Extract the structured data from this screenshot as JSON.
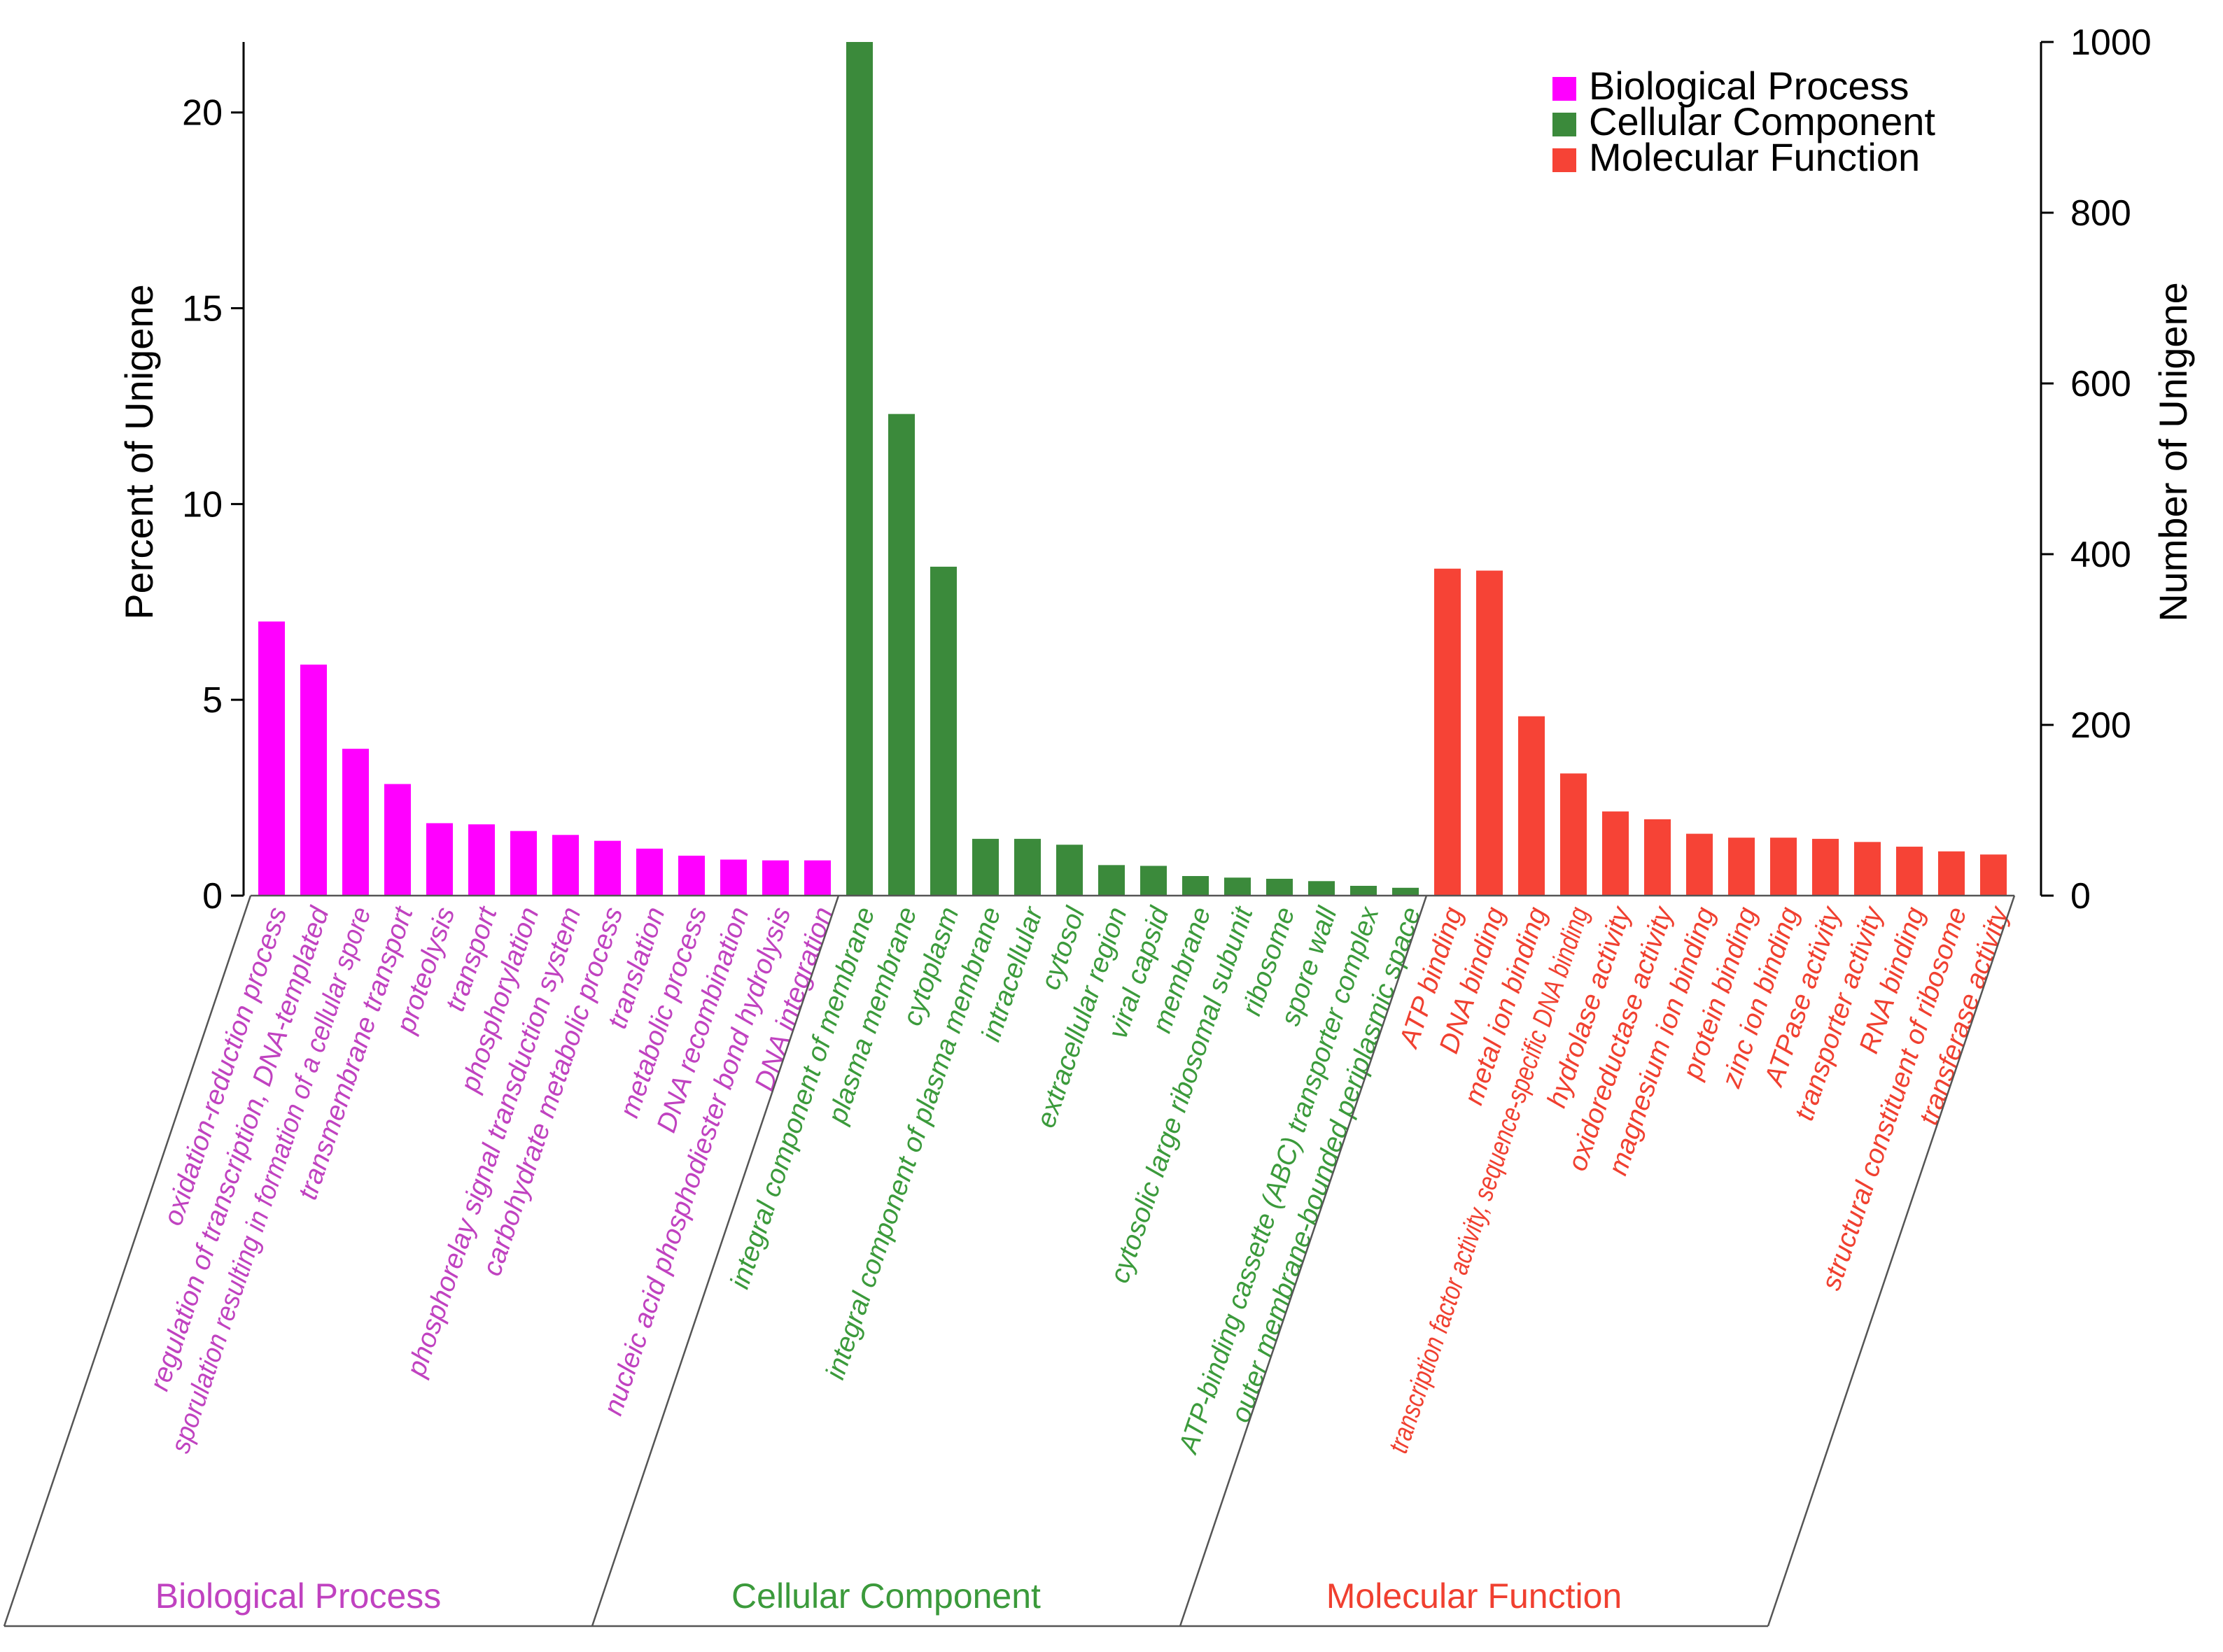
{
  "chart_data": {
    "type": "bar",
    "title": "",
    "ylabel": "Percent of Unigene",
    "ylabel_right": "Number of Unigene",
    "ylim": [
      0,
      21.8
    ],
    "ylim_right": [
      0,
      1000
    ],
    "yticks": [
      0,
      5,
      10,
      15,
      20
    ],
    "yticks_right": [
      0,
      200,
      400,
      600,
      800,
      1000
    ],
    "legend": {
      "placement": "top-right",
      "entries": [
        "Biological Process",
        "Cellular Component",
        "Molecular Function"
      ]
    },
    "series": [
      {
        "name": "Biological Process",
        "color": "#ff00ff",
        "label_color": "#c042c0",
        "categories": [
          "oxidation-reduction process",
          "regulation of transcription, DNA-templated",
          "sporulation resulting in formation of a cellular spore",
          "transmembrane transport",
          "proteolysis",
          "transport",
          "phosphorylation",
          "phosphorelay signal transduction system",
          "carbohydrate metabolic process",
          "translation",
          "metabolic process",
          "DNA recombination",
          "nucleic acid phosphodiester bond hydrolysis",
          "DNA integration"
        ],
        "values": [
          7.0,
          5.9,
          3.75,
          2.85,
          1.85,
          1.82,
          1.65,
          1.55,
          1.4,
          1.2,
          1.02,
          0.92,
          0.9,
          0.9
        ]
      },
      {
        "name": "Cellular Component",
        "color": "#3b8a3b",
        "label_color": "#3b9a3b",
        "categories": [
          "integral component of membrane",
          "plasma membrane",
          "cytoplasm",
          "integral component of plasma membrane",
          "intracellular",
          "cytosol",
          "extracellular region",
          "viral capsid",
          "membrane",
          "cytosolic large ribosomal subunit",
          "ribosome",
          "spore wall",
          "ATP-binding cassette (ABC) transporter complex",
          "outer membrane-bounded periplasmic space"
        ],
        "values": [
          21.8,
          12.3,
          8.4,
          1.45,
          1.45,
          1.3,
          0.78,
          0.76,
          0.5,
          0.46,
          0.43,
          0.37,
          0.25,
          0.2
        ]
      },
      {
        "name": "Molecular Function",
        "color": "#f64336",
        "label_color": "#f04030",
        "categories": [
          "ATP binding",
          "DNA binding",
          "metal ion binding",
          "transcription factor activity, sequence-specific DNA binding",
          "hydrolase activity",
          "oxidoreductase activity",
          "magnesium ion binding",
          "protein binding",
          "zinc ion binding",
          "ATPase activity",
          "transporter activity",
          "RNA binding",
          "structural constituent of ribosome",
          "transferase activity"
        ],
        "values": [
          8.35,
          8.3,
          4.58,
          3.12,
          2.15,
          1.95,
          1.58,
          1.48,
          1.48,
          1.45,
          1.37,
          1.25,
          1.13,
          1.05
        ]
      }
    ]
  }
}
